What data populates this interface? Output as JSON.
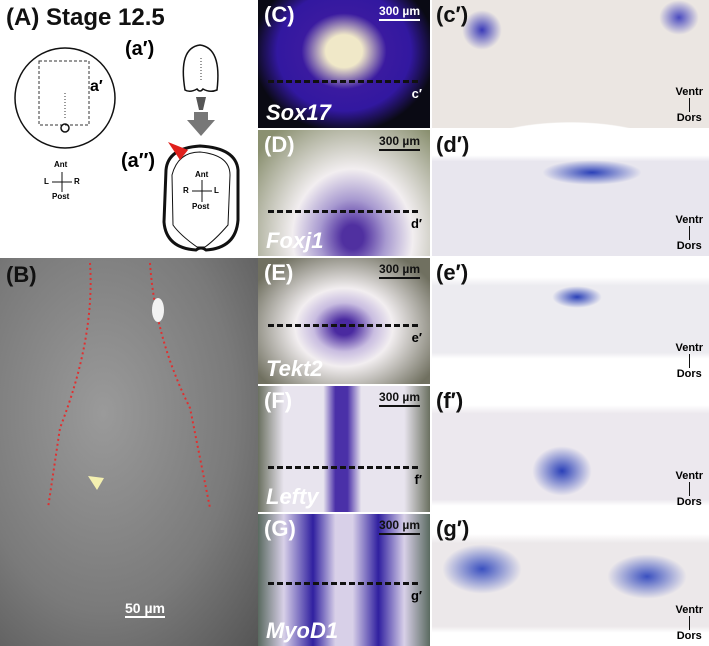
{
  "panelA": {
    "label": "(A) Stage 12.5",
    "sub1": "(a′)",
    "sub2": "(a″)",
    "box_label": "a′",
    "axes1": {
      "top": "Ant",
      "left": "L",
      "right": "R",
      "bottom": "Post"
    },
    "axes2": {
      "top": "Ant",
      "left": "R",
      "right": "L",
      "bottom": "Post"
    },
    "arrowhead_color": "#e0201c"
  },
  "panelB": {
    "label": "(B)",
    "scale": "50 µm",
    "arrowhead_color": "#f4f0b0",
    "outline_color": "#e03030"
  },
  "whole_mounts": [
    {
      "label": "(C)",
      "gene": "Sox17",
      "scale": "300 µm",
      "cut": "c′"
    },
    {
      "label": "(D)",
      "gene": "Foxj1",
      "scale": "300 µm",
      "cut": "d′"
    },
    {
      "label": "(E)",
      "gene": "Tekt2",
      "scale": "300 µm",
      "cut": "e′"
    },
    {
      "label": "(F)",
      "gene": "Lefty",
      "scale": "300 µm",
      "cut": "f′"
    },
    {
      "label": "(G)",
      "gene": "MyoD1",
      "scale": "300 µm",
      "cut": "g′"
    }
  ],
  "sections": [
    {
      "label": "(c′)",
      "top": "Ventr",
      "bottom": "Dors"
    },
    {
      "label": "(d′)",
      "top": "Ventr",
      "bottom": "Dors"
    },
    {
      "label": "(e′)",
      "top": "Ventr",
      "bottom": "Dors"
    },
    {
      "label": "(f′)",
      "top": "Ventr",
      "bottom": "Dors"
    },
    {
      "label": "(g′)",
      "top": "Ventr",
      "bottom": "Dors"
    }
  ]
}
